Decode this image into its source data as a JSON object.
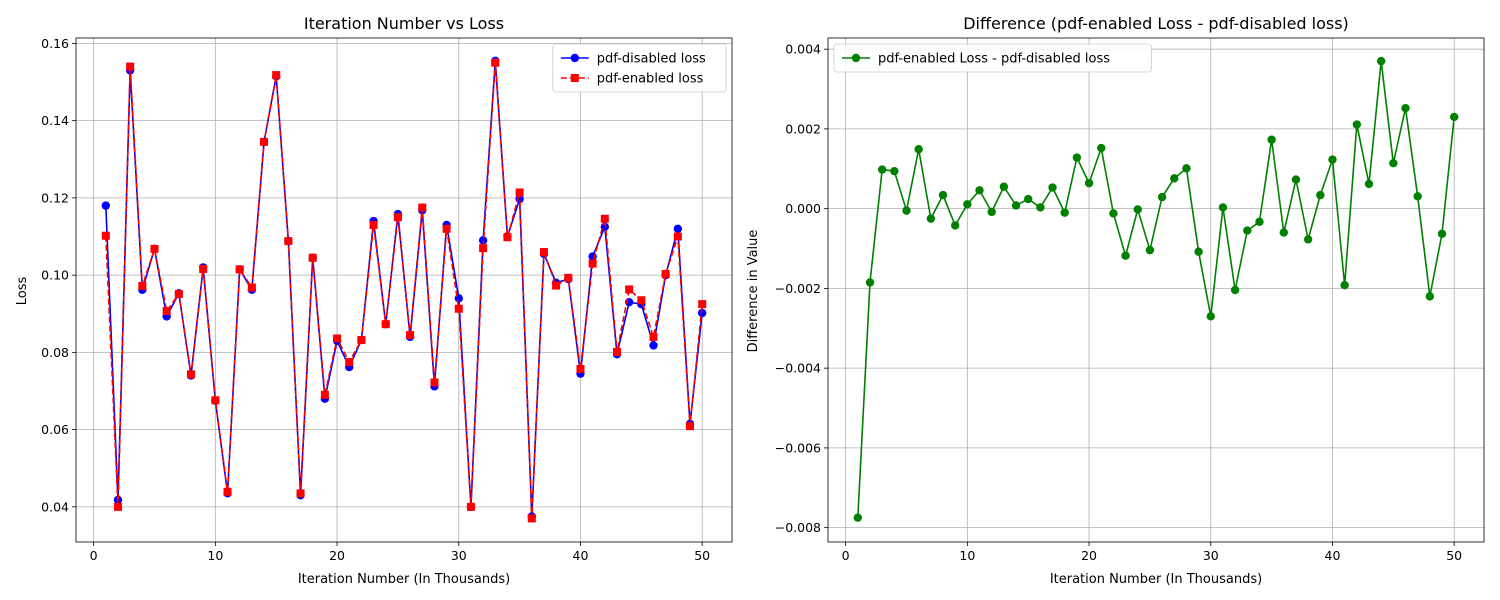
{
  "chart_data": [
    {
      "type": "line",
      "title": "Iteration Number vs Loss",
      "xlabel": "Iteration Number (In Thousands)",
      "ylabel": "Loss",
      "xlim": [
        -1.45,
        52.45
      ],
      "ylim": [
        0.0309,
        0.1614
      ],
      "xticks": [
        0,
        10,
        20,
        30,
        40,
        50
      ],
      "yticks": [
        0.04,
        0.06,
        0.08,
        0.1,
        0.12,
        0.14,
        0.16
      ],
      "ytick_labels": [
        "0.04",
        "0.06",
        "0.08",
        "0.10",
        "0.12",
        "0.14",
        "0.16"
      ],
      "grid": true,
      "legend": "top-right",
      "x": [
        1,
        2,
        3,
        4,
        5,
        6,
        7,
        8,
        9,
        10,
        11,
        12,
        13,
        14,
        15,
        16,
        17,
        18,
        19,
        20,
        21,
        22,
        23,
        24,
        25,
        26,
        27,
        28,
        29,
        30,
        31,
        32,
        33,
        34,
        35,
        36,
        37,
        38,
        39,
        40,
        41,
        42,
        43,
        44,
        45,
        46,
        47,
        48,
        49,
        50
      ],
      "series": [
        {
          "name": "pdf-disabled loss",
          "color": "#0000ff",
          "line_style": "solid",
          "marker": "circle",
          "values": [
            0.118,
            0.0418,
            0.153,
            0.0962,
            0.1068,
            0.0893,
            0.0953,
            0.074,
            0.102,
            0.0675,
            0.0435,
            0.1015,
            0.0962,
            0.1345,
            0.1515,
            0.1088,
            0.043,
            0.1045,
            0.068,
            0.083,
            0.0762,
            0.0832,
            0.114,
            0.0873,
            0.1158,
            0.084,
            0.1168,
            0.0712,
            0.113,
            0.094,
            0.04,
            0.109,
            0.1555,
            0.11,
            0.1197,
            0.0375,
            0.1055,
            0.098,
            0.099,
            0.0745,
            0.1048,
            0.1125,
            0.0795,
            0.093,
            0.0925,
            0.0818,
            0.1,
            0.112,
            0.0615,
            0.0902
          ]
        },
        {
          "name": "pdf-enabled loss",
          "color": "#ff0000",
          "line_style": "dashed",
          "marker": "square",
          "values": [
            0.1102,
            0.04,
            0.154,
            0.0972,
            0.1068,
            0.0907,
            0.0951,
            0.0743,
            0.1016,
            0.0676,
            0.0439,
            0.1015,
            0.0968,
            0.1345,
            0.1518,
            0.1088,
            0.0435,
            0.1045,
            0.069,
            0.0836,
            0.0775,
            0.0832,
            0.113,
            0.0873,
            0.115,
            0.0845,
            0.1175,
            0.0722,
            0.112,
            0.0913,
            0.04,
            0.107,
            0.155,
            0.1098,
            0.1214,
            0.037,
            0.106,
            0.0973,
            0.0993,
            0.0757,
            0.103,
            0.1146,
            0.0801,
            0.0963,
            0.0935,
            0.084,
            0.1003,
            0.11,
            0.0609,
            0.0925
          ]
        }
      ]
    },
    {
      "type": "line",
      "title": "Difference (pdf-enabled Loss - pdf-disabled loss)",
      "xlabel": "Iteration Number (In Thousands)",
      "ylabel": "Difference in Value",
      "xlim": [
        -1.45,
        52.45
      ],
      "ylim": [
        -0.00836,
        0.00428
      ],
      "xticks": [
        0,
        10,
        20,
        30,
        40,
        50
      ],
      "yticks": [
        -0.008,
        -0.006,
        -0.004,
        -0.002,
        0.0,
        0.002,
        0.004
      ],
      "ytick_labels": [
        "−0.008",
        "−0.006",
        "−0.004",
        "−0.002",
        "0.000",
        "0.002",
        "0.004"
      ],
      "grid": true,
      "legend": "top-left",
      "x": [
        1,
        2,
        3,
        4,
        5,
        6,
        7,
        8,
        9,
        10,
        11,
        12,
        13,
        14,
        15,
        16,
        17,
        18,
        19,
        20,
        21,
        22,
        23,
        24,
        25,
        26,
        27,
        28,
        29,
        30,
        31,
        32,
        33,
        34,
        35,
        36,
        37,
        38,
        39,
        40,
        41,
        42,
        43,
        44,
        45,
        46,
        47,
        48,
        49,
        50
      ],
      "series": [
        {
          "name": "pdf-enabled Loss - pdf-disabled loss",
          "color": "#008000",
          "line_style": "solid",
          "marker": "circle",
          "values": [
            -0.00775,
            -0.00185,
            0.00098,
            0.00094,
            -5e-05,
            0.00149,
            -0.00025,
            0.00034,
            -0.00042,
            0.00011,
            0.00046,
            -8e-05,
            0.00055,
            8e-05,
            0.00024,
            3e-05,
            0.00053,
            -0.0001,
            0.00128,
            0.00064,
            0.00152,
            -0.00012,
            -0.00118,
            -2e-05,
            -0.00104,
            0.00029,
            0.00076,
            0.00101,
            -0.00108,
            -0.0027,
            3e-05,
            -0.00204,
            -0.00055,
            -0.00033,
            0.00173,
            -0.0006,
            0.00073,
            -0.00077,
            0.00034,
            0.00123,
            -0.00192,
            0.00211,
            0.00062,
            0.0037,
            0.00114,
            0.00252,
            0.00031,
            -0.0022,
            -0.00063,
            0.0023
          ]
        }
      ]
    }
  ]
}
